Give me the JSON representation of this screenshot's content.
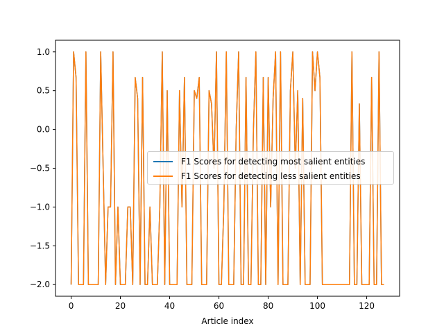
{
  "chart_data": {
    "type": "line",
    "title": "",
    "xlabel": "Article index",
    "ylabel": "",
    "xlim": [
      -6.35,
      133.35
    ],
    "ylim": [
      -2.15,
      1.15
    ],
    "xticks": [
      0,
      20,
      40,
      60,
      80,
      100,
      120
    ],
    "xtick_labels": [
      "0",
      "20",
      "40",
      "60",
      "80",
      "100",
      "120"
    ],
    "yticks": [
      -2.0,
      -1.5,
      -1.0,
      -0.5,
      0.0,
      0.5,
      1.0
    ],
    "ytick_labels": [
      "−2.0",
      "−1.5",
      "−1.0",
      "−0.5",
      "0.0",
      "0.5",
      "1.0"
    ],
    "grid": false,
    "legend_position": "center-right",
    "x": [
      0,
      1,
      2,
      3,
      4,
      5,
      6,
      7,
      8,
      9,
      10,
      11,
      12,
      13,
      14,
      15,
      16,
      17,
      18,
      19,
      20,
      21,
      22,
      23,
      24,
      25,
      26,
      27,
      28,
      29,
      30,
      31,
      32,
      33,
      34,
      35,
      36,
      37,
      38,
      39,
      40,
      41,
      42,
      43,
      44,
      45,
      46,
      47,
      48,
      49,
      50,
      51,
      52,
      53,
      54,
      55,
      56,
      57,
      58,
      59,
      60,
      61,
      62,
      63,
      64,
      65,
      66,
      67,
      68,
      69,
      70,
      71,
      72,
      73,
      74,
      75,
      76,
      77,
      78,
      79,
      80,
      81,
      82,
      83,
      84,
      85,
      86,
      87,
      88,
      89,
      90,
      91,
      92,
      93,
      94,
      95,
      96,
      97,
      98,
      99,
      100,
      101,
      102,
      103,
      104,
      105,
      106,
      107,
      108,
      109,
      110,
      111,
      112,
      113,
      114,
      115,
      116,
      117,
      118,
      119,
      120,
      121,
      122,
      123,
      124,
      125,
      126,
      127
    ],
    "series": [
      {
        "name": "F1 Scores for detecting most salient entities",
        "color": "#1f77b4",
        "values": [
          -2,
          1,
          0.67,
          -2,
          -2,
          -2,
          1,
          -2,
          -2,
          -2,
          -2,
          -2,
          1,
          -0.5,
          -2,
          -1,
          -1,
          1,
          -2,
          -1,
          -2,
          -2,
          -2,
          -1,
          -1,
          -2,
          0.67,
          0.4,
          -2,
          0.67,
          -2,
          -2,
          -1,
          -2,
          -2,
          -2,
          -1,
          1,
          -2,
          0.5,
          -2,
          -2,
          -2,
          -2,
          0.5,
          -1,
          0.67,
          -2,
          -2,
          -2,
          0.5,
          0.4,
          0.67,
          -2,
          -2,
          -2,
          0.5,
          0.33,
          -0.5,
          1,
          -2,
          -2,
          -1,
          1,
          -2,
          -2,
          -2,
          0,
          1,
          -2,
          -2,
          0.67,
          -2,
          -2,
          0,
          1,
          -2,
          -2,
          0.67,
          -2,
          0.67,
          -1,
          0.4,
          1,
          -2,
          1,
          -2,
          -2,
          -2,
          0.5,
          1,
          -0.5,
          0.5,
          -2,
          0.4,
          -2,
          -2,
          -2,
          1,
          0.5,
          1,
          0.67,
          -2,
          -2,
          -2,
          -2,
          -2,
          -2,
          -2,
          -2,
          -2,
          -2,
          -2,
          -2,
          1,
          -2,
          -2,
          0.33,
          -2,
          -2,
          -2,
          -2,
          0.67,
          -2,
          -2,
          1,
          -2,
          -2
        ]
      },
      {
        "name": "F1 Scores for detecting less salient entities",
        "color": "#ff7f0e",
        "values": [
          -2,
          1,
          0.67,
          -2,
          -2,
          -2,
          1,
          -2,
          -2,
          -2,
          -2,
          -2,
          1,
          -0.5,
          -2,
          -1,
          -1,
          1,
          -2,
          -1,
          -2,
          -2,
          -2,
          -1,
          -1,
          -2,
          0.67,
          0.4,
          -2,
          0.67,
          -2,
          -2,
          -1,
          -2,
          -2,
          -2,
          -1,
          1,
          -2,
          0.5,
          -2,
          -2,
          -2,
          -2,
          0.5,
          -1,
          0.67,
          -2,
          -2,
          -2,
          0.5,
          0.4,
          0.67,
          -2,
          -2,
          -2,
          0.5,
          0.33,
          -0.5,
          1,
          -2,
          -2,
          -1,
          1,
          -2,
          -2,
          -2,
          0,
          1,
          -2,
          -2,
          0.67,
          -2,
          -2,
          0,
          1,
          -2,
          -2,
          0.67,
          -2,
          0.67,
          -1,
          0.4,
          1,
          -2,
          1,
          -2,
          -2,
          -2,
          0.5,
          1,
          -0.5,
          0.5,
          -2,
          0.4,
          -2,
          -2,
          -2,
          1,
          0.5,
          1,
          0.67,
          -2,
          -2,
          -2,
          -2,
          -2,
          -2,
          -2,
          -2,
          -2,
          -2,
          -2,
          -2,
          1,
          -2,
          -2,
          0.33,
          -2,
          -2,
          -2,
          -2,
          0.67,
          -2,
          -2,
          1,
          -2,
          -2
        ]
      }
    ]
  }
}
